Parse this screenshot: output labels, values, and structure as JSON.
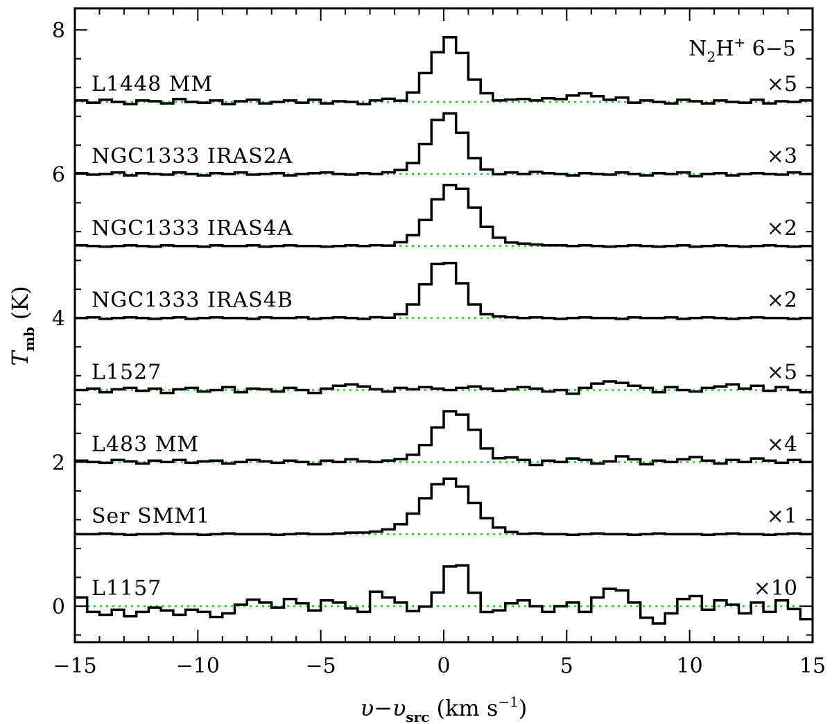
{
  "chart_data": {
    "type": "line",
    "style": "step",
    "title": "",
    "annotation": {
      "main": "N",
      "sub": "2",
      "mid": "H",
      "sup": "+",
      "tail": " 6−5"
    },
    "xlabel": {
      "main": "υ−υ",
      "sub": "src",
      "tail": " (km s",
      "sup": "−1",
      "end": ")"
    },
    "ylabel": {
      "main": "T",
      "sub": "mb",
      "tail": " (K)"
    },
    "xlim": [
      -15,
      15
    ],
    "ylim": [
      -0.5,
      8.3
    ],
    "xticks": [
      -15,
      -10,
      -5,
      0,
      5,
      10,
      15
    ],
    "yticks": [
      0,
      2,
      4,
      6,
      8
    ],
    "xtick_labels": [
      "−15",
      "−10",
      "−5",
      "0",
      "5",
      "10",
      "15"
    ],
    "ytick_labels": [
      "0",
      "2",
      "4",
      "6",
      "8"
    ],
    "grid": false,
    "baseline_color": "#00e000",
    "series_color": "#000000",
    "channel_width_kms": 0.5,
    "series": [
      {
        "label": "L1448 MM",
        "scale": "×5",
        "offset": 7,
        "peak": 0.85,
        "center": 0.2,
        "width": 0.75,
        "noise": [
          0.02,
          -0.01,
          0.03,
          0.0,
          -0.03,
          0.02,
          0.01,
          -0.02,
          0.04,
          0.0,
          -0.01,
          0.02,
          -0.03,
          0.01,
          0.03,
          -0.02,
          0.0,
          0.02,
          -0.01,
          0.03,
          -0.02,
          0.01,
          0.0,
          -0.03,
          0.02,
          0.04,
          -0.01,
          0.0,
          0.02,
          -0.02,
          0.05,
          0.03,
          -0.01,
          0.02,
          0.0,
          0.03,
          0.04,
          0.02,
          0.05,
          0.04,
          0.09,
          0.12,
          0.08,
          0.03,
          0.06,
          -0.01,
          0.02,
          0.0,
          -0.02,
          0.03,
          0.01,
          -0.02,
          0.02,
          0.0,
          -0.01,
          0.03,
          -0.02,
          0.01,
          0.0,
          0.02
        ]
      },
      {
        "label": "NGC1333 IRAS2A",
        "scale": "×3",
        "offset": 6,
        "peak": 0.85,
        "center": 0.1,
        "width": 0.7,
        "noise": [
          0.01,
          -0.01,
          0.0,
          0.02,
          -0.02,
          0.01,
          0.0,
          -0.01,
          0.02,
          0.0,
          -0.02,
          0.01,
          0.0,
          0.02,
          -0.01,
          0.0,
          0.01,
          -0.02,
          0.0,
          0.01,
          0.02,
          0.0,
          -0.01,
          0.01,
          0.0,
          0.02,
          0.03,
          0.02,
          0.01,
          0.0,
          0.01,
          0.02,
          0.0,
          0.01,
          -0.01,
          0.02,
          0.0,
          0.03,
          0.01,
          0.0,
          -0.02,
          0.01,
          0.0,
          -0.01,
          0.02,
          0.0,
          -0.02,
          0.01,
          0.0,
          0.02,
          -0.03,
          0.0,
          0.01,
          -0.02,
          0.0,
          0.01,
          0.0,
          -0.01,
          0.02,
          0.0
        ]
      },
      {
        "label": "NGC1333 IRAS4A",
        "scale": "×2",
        "offset": 5,
        "peak": 0.8,
        "center": 0.4,
        "width": 0.85,
        "noise": [
          0.01,
          0.0,
          -0.01,
          0.0,
          0.01,
          0.0,
          -0.01,
          0.01,
          0.0,
          0.0,
          -0.01,
          0.01,
          0.0,
          0.0,
          0.01,
          -0.01,
          0.0,
          0.01,
          0.0,
          0.0,
          -0.01,
          0.0,
          0.01,
          0.0,
          0.01,
          0.0,
          0.02,
          0.03,
          0.04,
          0.05,
          0.06,
          0.06,
          0.05,
          0.04,
          0.04,
          0.03,
          0.03,
          0.02,
          0.01,
          0.01,
          0.0,
          0.01,
          0.0,
          -0.01,
          0.0,
          0.01,
          0.0,
          -0.01,
          0.0,
          0.01,
          -0.01,
          0.0,
          0.01,
          0.0,
          -0.01,
          0.0,
          0.01,
          0.0,
          -0.01,
          0.0
        ]
      },
      {
        "label": "NGC1333 IRAS4B",
        "scale": "×2",
        "offset": 4,
        "peak": 0.78,
        "center": 0.0,
        "width": 0.7,
        "noise": [
          0.0,
          0.01,
          -0.01,
          0.0,
          0.01,
          0.0,
          -0.01,
          0.0,
          0.01,
          -0.01,
          0.0,
          0.01,
          0.0,
          0.0,
          -0.01,
          0.01,
          0.0,
          0.0,
          0.01,
          -0.01,
          0.0,
          0.01,
          0.0,
          -0.01,
          0.01,
          0.0,
          0.02,
          0.03,
          0.03,
          0.02,
          0.03,
          0.04,
          0.03,
          0.02,
          0.02,
          0.01,
          0.0,
          0.01,
          0.0,
          -0.01,
          0.0,
          0.01,
          0.0,
          0.0,
          -0.01,
          0.01,
          0.0,
          0.0,
          0.01,
          -0.01,
          0.0,
          0.01,
          0.0,
          -0.01,
          0.0,
          0.01,
          0.0,
          0.0,
          -0.01,
          0.0
        ]
      },
      {
        "label": "L1527",
        "scale": "×5",
        "offset": 3,
        "peak": 0.0,
        "center": 0.0,
        "width": 1.0,
        "noise": [
          0.0,
          0.02,
          -0.03,
          0.01,
          0.03,
          -0.01,
          0.02,
          -0.04,
          0.01,
          0.03,
          -0.02,
          0.0,
          0.04,
          -0.03,
          0.02,
          0.01,
          -0.02,
          0.03,
          0.0,
          -0.04,
          0.02,
          0.06,
          0.08,
          0.05,
          0.01,
          -0.02,
          0.03,
          0.01,
          0.04,
          0.02,
          0.0,
          0.03,
          0.05,
          0.02,
          -0.01,
          0.01,
          0.04,
          0.02,
          -0.02,
          0.0,
          -0.05,
          0.03,
          0.09,
          0.12,
          0.1,
          0.06,
          0.03,
          -0.03,
          0.04,
          0.0,
          -0.02,
          0.03,
          0.05,
          0.08,
          0.02,
          0.06,
          -0.01,
          0.04,
          0.0,
          -0.03
        ]
      },
      {
        "label": "L483 MM",
        "scale": "×4",
        "offset": 2,
        "peak": 0.7,
        "center": 0.4,
        "width": 0.75,
        "noise": [
          0.02,
          0.0,
          -0.01,
          0.03,
          0.01,
          -0.02,
          0.02,
          0.0,
          0.03,
          -0.01,
          0.01,
          0.02,
          -0.02,
          0.0,
          0.03,
          0.01,
          -0.01,
          0.02,
          0.0,
          -0.03,
          0.02,
          0.0,
          0.04,
          0.01,
          0.0,
          0.02,
          0.03,
          0.04,
          0.02,
          0.0,
          0.02,
          0.03,
          0.08,
          0.05,
          0.02,
          0.06,
          0.03,
          -0.04,
          0.02,
          0.0,
          0.05,
          0.03,
          -0.02,
          0.01,
          0.08,
          0.04,
          -0.03,
          0.02,
          0.0,
          0.04,
          0.07,
          0.02,
          -0.02,
          0.03,
          0.0,
          0.05,
          0.02,
          -0.01,
          0.03,
          0.0
        ]
      },
      {
        "label": "Ser SMM1",
        "scale": "×1",
        "offset": 1,
        "peak": 0.72,
        "center": 0.2,
        "width": 0.95,
        "noise": [
          0.0,
          0.0,
          0.01,
          0.0,
          -0.01,
          0.0,
          0.0,
          0.01,
          0.0,
          0.0,
          -0.01,
          0.0,
          0.01,
          0.0,
          0.0,
          0.0,
          -0.01,
          0.0,
          0.01,
          0.0,
          0.0,
          0.01,
          0.02,
          0.02,
          0.03,
          0.04,
          0.05,
          0.06,
          0.06,
          0.05,
          0.05,
          0.05,
          0.04,
          0.03,
          0.02,
          0.01,
          0.0,
          0.01,
          0.0,
          0.0,
          -0.01,
          0.0,
          0.01,
          0.0,
          0.0,
          -0.01,
          0.0,
          0.01,
          0.0,
          0.0,
          0.0,
          -0.01,
          0.0,
          0.01,
          0.0,
          0.0,
          -0.01,
          0.0,
          0.01,
          0.0
        ]
      },
      {
        "label": "L1157",
        "scale": "×10",
        "offset": 0,
        "peak": 0.55,
        "center": 0.6,
        "width": 0.5,
        "noise": [
          0.12,
          -0.08,
          -0.12,
          -0.05,
          -0.14,
          -0.08,
          -0.02,
          -0.06,
          -0.12,
          -0.05,
          -0.08,
          -0.15,
          -0.1,
          0.02,
          0.09,
          0.05,
          -0.02,
          0.1,
          0.04,
          -0.06,
          0.08,
          0.05,
          -0.03,
          -0.08,
          0.2,
          0.12,
          0.05,
          -0.07,
          -0.02,
          0.06,
          0.12,
          0.04,
          -0.05,
          -0.12,
          -0.06,
          0.04,
          0.08,
          0.0,
          -0.08,
          0.0,
          0.05,
          -0.08,
          0.12,
          0.24,
          0.22,
          0.05,
          -0.16,
          -0.24,
          -0.1,
          0.1,
          0.14,
          -0.05,
          0.08,
          0.02,
          -0.1,
          0.05,
          -0.08,
          0.08,
          -0.04,
          -0.18
        ]
      }
    ]
  }
}
